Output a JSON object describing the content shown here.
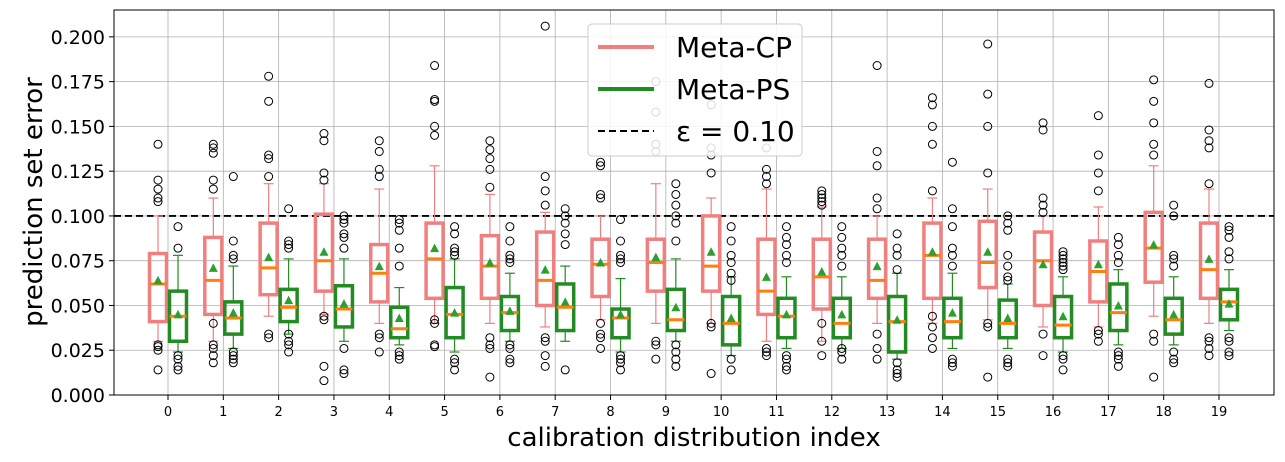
{
  "chart_data": {
    "type": "box",
    "xlabel": "calibration distribution index",
    "ylabel": "prediction set error",
    "categories": [
      "0",
      "1",
      "2",
      "3",
      "4",
      "5",
      "6",
      "7",
      "8",
      "9",
      "10",
      "11",
      "12",
      "13",
      "14",
      "15",
      "16",
      "17",
      "18",
      "19"
    ],
    "ylim": [
      0.0,
      0.215
    ],
    "yticks": [
      0.0,
      0.025,
      0.05,
      0.075,
      0.1,
      0.125,
      0.15,
      0.175,
      0.2
    ],
    "ytick_labels": [
      "0.000",
      "0.025",
      "0.050",
      "0.075",
      "0.100",
      "0.125",
      "0.150",
      "0.175",
      "0.200"
    ],
    "grid": true,
    "reference_line": {
      "y": 0.1,
      "label": "ε = 0.10",
      "style": "dashed",
      "color": "#000000"
    },
    "legend": {
      "placement": "top-center",
      "entries": [
        {
          "label": "Meta-CP",
          "color": "#f08080"
        },
        {
          "label": "Meta-PS",
          "color": "#228b22"
        },
        {
          "label": "ε = 0.10",
          "color": "#000000"
        }
      ]
    },
    "series": [
      {
        "name": "Meta-CP",
        "color": "#f08080",
        "boxes": [
          {
            "q1": 0.041,
            "median": 0.062,
            "q3": 0.079,
            "wlo": 0.03,
            "whi": 0.1,
            "mean": 0.064,
            "fliers": [
              0.014,
              0.025,
              0.027,
              0.028,
              0.108,
              0.11,
              0.115,
              0.12,
              0.14
            ]
          },
          {
            "q1": 0.045,
            "median": 0.064,
            "q3": 0.088,
            "wlo": 0.03,
            "whi": 0.11,
            "mean": 0.071,
            "fliers": [
              0.018,
              0.022,
              0.026,
              0.028,
              0.04,
              0.115,
              0.12,
              0.135,
              0.138,
              0.14
            ]
          },
          {
            "q1": 0.056,
            "median": 0.071,
            "q3": 0.096,
            "wlo": 0.044,
            "whi": 0.118,
            "mean": 0.077,
            "fliers": [
              0.032,
              0.034,
              0.122,
              0.132,
              0.134,
              0.164,
              0.178
            ]
          },
          {
            "q1": 0.058,
            "median": 0.075,
            "q3": 0.101,
            "wlo": 0.045,
            "whi": 0.118,
            "mean": 0.08,
            "fliers": [
              0.008,
              0.016,
              0.042,
              0.044,
              0.12,
              0.124,
              0.142,
              0.146
            ]
          },
          {
            "q1": 0.052,
            "median": 0.068,
            "q3": 0.084,
            "wlo": 0.04,
            "whi": 0.115,
            "mean": 0.072,
            "fliers": [
              0.024,
              0.032,
              0.034,
              0.122,
              0.126,
              0.136,
              0.142
            ]
          },
          {
            "q1": 0.054,
            "median": 0.076,
            "q3": 0.096,
            "wlo": 0.04,
            "whi": 0.128,
            "mean": 0.082,
            "fliers": [
              0.027,
              0.028,
              0.04,
              0.042,
              0.145,
              0.15,
              0.164,
              0.165,
              0.184
            ]
          },
          {
            "q1": 0.054,
            "median": 0.072,
            "q3": 0.089,
            "wlo": 0.04,
            "whi": 0.112,
            "mean": 0.074,
            "fliers": [
              0.01,
              0.026,
              0.028,
              0.032,
              0.116,
              0.126,
              0.132,
              0.137,
              0.142
            ]
          },
          {
            "q1": 0.05,
            "median": 0.064,
            "q3": 0.091,
            "wlo": 0.038,
            "whi": 0.102,
            "mean": 0.07,
            "fliers": [
              0.016,
              0.022,
              0.03,
              0.032,
              0.106,
              0.114,
              0.122,
              0.206
            ]
          },
          {
            "q1": 0.055,
            "median": 0.073,
            "q3": 0.087,
            "wlo": 0.042,
            "whi": 0.1,
            "mean": 0.074,
            "fliers": [
              0.026,
              0.032,
              0.034,
              0.04,
              0.11,
              0.112,
              0.128,
              0.13
            ]
          },
          {
            "q1": 0.058,
            "median": 0.074,
            "q3": 0.087,
            "wlo": 0.04,
            "whi": 0.118,
            "mean": 0.077,
            "fliers": [
              0.02,
              0.028,
              0.03,
              0.136,
              0.14,
              0.158,
              0.175
            ]
          },
          {
            "q1": 0.058,
            "median": 0.072,
            "q3": 0.1,
            "wlo": 0.04,
            "whi": 0.11,
            "mean": 0.08,
            "fliers": [
              0.012,
              0.038,
              0.04,
              0.124,
              0.134,
              0.138,
              0.162
            ]
          },
          {
            "q1": 0.045,
            "median": 0.058,
            "q3": 0.087,
            "wlo": 0.03,
            "whi": 0.115,
            "mean": 0.066,
            "fliers": [
              0.022,
              0.024,
              0.026,
              0.118,
              0.122,
              0.126,
              0.138
            ]
          },
          {
            "q1": 0.048,
            "median": 0.066,
            "q3": 0.087,
            "wlo": 0.03,
            "whi": 0.105,
            "mean": 0.069,
            "fliers": [
              0.022,
              0.03,
              0.04,
              0.106,
              0.108,
              0.11,
              0.112,
              0.114
            ]
          },
          {
            "q1": 0.054,
            "median": 0.064,
            "q3": 0.087,
            "wlo": 0.04,
            "whi": 0.1,
            "mean": 0.072,
            "fliers": [
              0.02,
              0.026,
              0.034,
              0.104,
              0.11,
              0.128,
              0.136,
              0.184
            ]
          },
          {
            "q1": 0.054,
            "median": 0.078,
            "q3": 0.096,
            "wlo": 0.04,
            "whi": 0.11,
            "mean": 0.08,
            "fliers": [
              0.026,
              0.032,
              0.038,
              0.044,
              0.114,
              0.14,
              0.15,
              0.162,
              0.166
            ]
          },
          {
            "q1": 0.06,
            "median": 0.074,
            "q3": 0.097,
            "wlo": 0.042,
            "whi": 0.115,
            "mean": 0.08,
            "fliers": [
              0.01,
              0.038,
              0.04,
              0.124,
              0.15,
              0.168,
              0.196
            ]
          },
          {
            "q1": 0.05,
            "median": 0.075,
            "q3": 0.091,
            "wlo": 0.038,
            "whi": 0.1,
            "mean": 0.073,
            "fliers": [
              0.022,
              0.034,
              0.102,
              0.106,
              0.11,
              0.148,
              0.152
            ]
          },
          {
            "q1": 0.052,
            "median": 0.069,
            "q3": 0.086,
            "wlo": 0.038,
            "whi": 0.105,
            "mean": 0.073,
            "fliers": [
              0.03,
              0.034,
              0.036,
              0.114,
              0.124,
              0.134,
              0.156
            ]
          },
          {
            "q1": 0.063,
            "median": 0.082,
            "q3": 0.102,
            "wlo": 0.044,
            "whi": 0.128,
            "mean": 0.084,
            "fliers": [
              0.01,
              0.03,
              0.034,
              0.134,
              0.14,
              0.152,
              0.164,
              0.176
            ]
          },
          {
            "q1": 0.054,
            "median": 0.07,
            "q3": 0.096,
            "wlo": 0.04,
            "whi": 0.115,
            "mean": 0.076,
            "fliers": [
              0.022,
              0.026,
              0.03,
              0.032,
              0.118,
              0.138,
              0.142,
              0.148,
              0.174
            ]
          }
        ]
      },
      {
        "name": "Meta-PS",
        "color": "#228b22",
        "boxes": [
          {
            "q1": 0.03,
            "median": 0.044,
            "q3": 0.058,
            "wlo": 0.024,
            "whi": 0.078,
            "mean": 0.045,
            "fliers": [
              0.014,
              0.016,
              0.02,
              0.022,
              0.082,
              0.094
            ]
          },
          {
            "q1": 0.034,
            "median": 0.043,
            "q3": 0.052,
            "wlo": 0.026,
            "whi": 0.072,
            "mean": 0.046,
            "fliers": [
              0.018,
              0.02,
              0.022,
              0.024,
              0.076,
              0.078,
              0.086,
              0.122
            ]
          },
          {
            "q1": 0.041,
            "median": 0.049,
            "q3": 0.059,
            "wlo": 0.034,
            "whi": 0.076,
            "mean": 0.053,
            "fliers": [
              0.024,
              0.028,
              0.03,
              0.034,
              0.082,
              0.084,
              0.086,
              0.104
            ]
          },
          {
            "q1": 0.038,
            "median": 0.048,
            "q3": 0.061,
            "wlo": 0.03,
            "whi": 0.076,
            "mean": 0.051,
            "fliers": [
              0.012,
              0.014,
              0.026,
              0.082,
              0.088,
              0.09,
              0.096,
              0.098,
              0.1
            ]
          },
          {
            "q1": 0.032,
            "median": 0.037,
            "q3": 0.049,
            "wlo": 0.028,
            "whi": 0.06,
            "mean": 0.043,
            "fliers": [
              0.02,
              0.022,
              0.024,
              0.072,
              0.082,
              0.092,
              0.096,
              0.098
            ]
          },
          {
            "q1": 0.032,
            "median": 0.045,
            "q3": 0.06,
            "wlo": 0.024,
            "whi": 0.076,
            "mean": 0.046,
            "fliers": [
              0.014,
              0.018,
              0.02,
              0.078,
              0.08,
              0.082,
              0.09,
              0.094
            ]
          },
          {
            "q1": 0.036,
            "median": 0.046,
            "q3": 0.055,
            "wlo": 0.03,
            "whi": 0.068,
            "mean": 0.047,
            "fliers": [
              0.018,
              0.02,
              0.026,
              0.028,
              0.074,
              0.076,
              0.078,
              0.086,
              0.094
            ]
          },
          {
            "q1": 0.036,
            "median": 0.049,
            "q3": 0.062,
            "wlo": 0.03,
            "whi": 0.072,
            "mean": 0.052,
            "fliers": [
              0.014,
              0.084,
              0.09,
              0.096,
              0.1,
              0.104
            ]
          },
          {
            "q1": 0.032,
            "median": 0.043,
            "q3": 0.048,
            "wlo": 0.024,
            "whi": 0.065,
            "mean": 0.045,
            "fliers": [
              0.014,
              0.018,
              0.02,
              0.022,
              0.074,
              0.076,
              0.078,
              0.086,
              0.098
            ]
          },
          {
            "q1": 0.036,
            "median": 0.042,
            "q3": 0.059,
            "wlo": 0.03,
            "whi": 0.076,
            "mean": 0.049,
            "fliers": [
              0.016,
              0.02,
              0.024,
              0.028,
              0.086,
              0.096,
              0.1,
              0.106,
              0.112,
              0.118
            ]
          },
          {
            "q1": 0.028,
            "median": 0.04,
            "q3": 0.055,
            "wlo": 0.022,
            "whi": 0.066,
            "mean": 0.043,
            "fliers": [
              0.014,
              0.02,
              0.064,
              0.068,
              0.074,
              0.078,
              0.086,
              0.094
            ]
          },
          {
            "q1": 0.032,
            "median": 0.044,
            "q3": 0.054,
            "wlo": 0.026,
            "whi": 0.066,
            "mean": 0.045,
            "fliers": [
              0.014,
              0.016,
              0.02,
              0.022,
              0.074,
              0.078,
              0.084,
              0.088,
              0.094
            ]
          },
          {
            "q1": 0.032,
            "median": 0.04,
            "q3": 0.054,
            "wlo": 0.026,
            "whi": 0.066,
            "mean": 0.045,
            "fliers": [
              0.02,
              0.024,
              0.026,
              0.072,
              0.078,
              0.082,
              0.088,
              0.094
            ]
          },
          {
            "q1": 0.024,
            "median": 0.041,
            "q3": 0.055,
            "wlo": 0.02,
            "whi": 0.068,
            "mean": 0.042,
            "fliers": [
              0.01,
              0.012,
              0.014,
              0.018,
              0.07,
              0.078,
              0.082,
              0.09
            ]
          },
          {
            "q1": 0.032,
            "median": 0.041,
            "q3": 0.054,
            "wlo": 0.026,
            "whi": 0.068,
            "mean": 0.046,
            "fliers": [
              0.016,
              0.018,
              0.02,
              0.072,
              0.078,
              0.082,
              0.094,
              0.104,
              0.13
            ]
          },
          {
            "q1": 0.032,
            "median": 0.04,
            "q3": 0.053,
            "wlo": 0.026,
            "whi": 0.062,
            "mean": 0.043,
            "fliers": [
              0.016,
              0.018,
              0.02,
              0.064,
              0.066,
              0.072,
              0.078,
              0.092,
              0.096,
              0.1
            ]
          },
          {
            "q1": 0.032,
            "median": 0.039,
            "q3": 0.055,
            "wlo": 0.024,
            "whi": 0.066,
            "mean": 0.044,
            "fliers": [
              0.014,
              0.02,
              0.022,
              0.07,
              0.072,
              0.074,
              0.076,
              0.078,
              0.08
            ]
          },
          {
            "q1": 0.036,
            "median": 0.046,
            "q3": 0.062,
            "wlo": 0.028,
            "whi": 0.07,
            "mean": 0.05,
            "fliers": [
              0.016,
              0.02,
              0.022,
              0.024,
              0.074,
              0.078,
              0.084,
              0.088
            ]
          },
          {
            "q1": 0.034,
            "median": 0.042,
            "q3": 0.054,
            "wlo": 0.028,
            "whi": 0.066,
            "mean": 0.045,
            "fliers": [
              0.018,
              0.02,
              0.024,
              0.072,
              0.076,
              0.078,
              0.1,
              0.106
            ]
          },
          {
            "q1": 0.042,
            "median": 0.052,
            "q3": 0.059,
            "wlo": 0.036,
            "whi": 0.07,
            "mean": 0.051,
            "fliers": [
              0.022,
              0.024,
              0.03,
              0.032,
              0.076,
              0.08,
              0.088,
              0.092,
              0.094
            ]
          }
        ]
      }
    ]
  }
}
